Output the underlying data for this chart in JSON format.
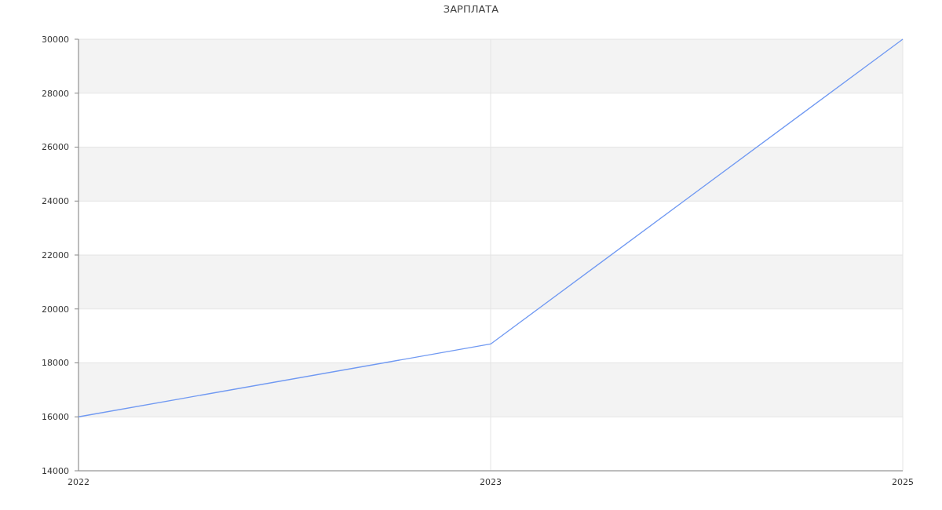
{
  "chart_data": {
    "type": "line",
    "title": "ЗАРПЛАТА",
    "categories": [
      "2022",
      "2023",
      "2025"
    ],
    "series": [
      {
        "color": "#7099f2",
        "values": [
          16000,
          18700,
          30000
        ]
      }
    ],
    "ylim": [
      14000,
      30000
    ],
    "yticks": [
      14000,
      16000,
      18000,
      20000,
      22000,
      24000,
      26000,
      28000,
      30000
    ],
    "grid": true,
    "marker": "none",
    "line_style": "solid"
  }
}
